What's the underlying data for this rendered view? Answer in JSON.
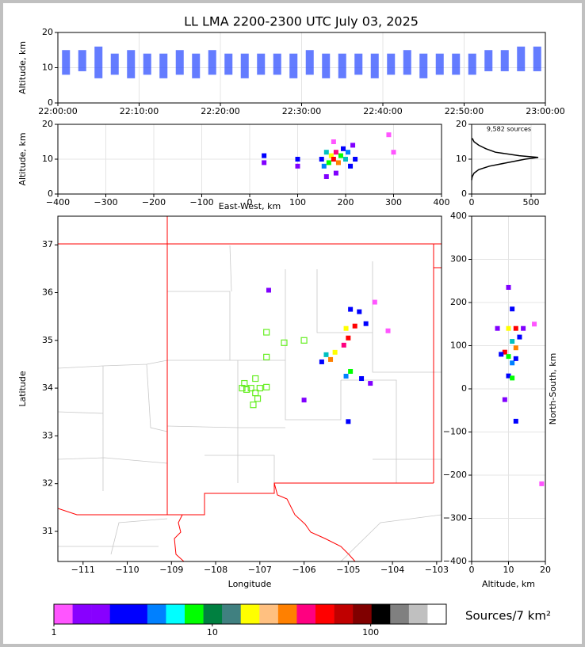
{
  "chart_data": [
    {
      "type": "range_bar",
      "title": "LL LMA 2200-2300 UTC July 03, 2025",
      "ylabel": "Altitude, km",
      "xlim": [
        0,
        60
      ],
      "xticks": [
        {
          "value": 0,
          "label": "22:00:00"
        },
        {
          "value": 10,
          "label": "22:10:00"
        },
        {
          "value": 20,
          "label": "22:20:00"
        },
        {
          "value": 30,
          "label": "22:30:00"
        },
        {
          "value": 40,
          "label": "22:40:00"
        },
        {
          "value": 50,
          "label": "22:50:00"
        },
        {
          "value": 60,
          "label": "23:00:00"
        }
      ],
      "ylim": [
        0,
        20
      ],
      "yticks": [
        0,
        10,
        20
      ],
      "grid": true,
      "color": "#3050ff",
      "x": [
        1,
        3,
        5,
        7,
        9,
        11,
        13,
        15,
        17,
        19,
        21,
        23,
        25,
        27,
        29,
        31,
        33,
        35,
        37,
        39,
        41,
        43,
        45,
        47,
        49,
        51,
        53,
        55,
        57,
        59
      ],
      "y_low": [
        8,
        9,
        7,
        8,
        7,
        8,
        7,
        8,
        7,
        8,
        8,
        7,
        8,
        8,
        7,
        8,
        7,
        7,
        8,
        7,
        8,
        8,
        7,
        8,
        8,
        8,
        9,
        9,
        9,
        9
      ],
      "y_high": [
        15,
        15,
        16,
        14,
        15,
        14,
        14,
        15,
        14,
        15,
        14,
        14,
        14,
        14,
        14,
        15,
        14,
        14,
        14,
        14,
        14,
        15,
        14,
        14,
        14,
        14,
        15,
        15,
        16,
        16
      ]
    },
    {
      "type": "scatter",
      "xlabel": "East-West, km",
      "ylabel": "Altitude, km",
      "xlim": [
        -400,
        400
      ],
      "xticks": [
        {
          "value": -400,
          "label": "−400"
        },
        {
          "value": -300,
          "label": "−300"
        },
        {
          "value": -200,
          "label": "−200"
        },
        {
          "value": -100,
          "label": "−100"
        },
        0,
        100,
        200,
        300,
        400
      ],
      "ylim": [
        0,
        20
      ],
      "yticks": [
        0,
        10,
        20
      ],
      "grid": true,
      "x": [
        30,
        30,
        100,
        100,
        150,
        155,
        160,
        165,
        170,
        175,
        180,
        185,
        190,
        195,
        200,
        205,
        210,
        215,
        220,
        175,
        180,
        290,
        300,
        160
      ],
      "y": [
        9,
        11,
        8,
        10,
        10,
        8,
        12,
        9,
        11,
        10,
        12,
        9,
        11,
        13,
        10,
        12,
        8,
        14,
        10,
        15,
        6,
        17,
        12,
        5
      ],
      "colors": [
        "#8000ff",
        "#0000ff",
        "#8000ff",
        "#0000ff",
        "#0000ff",
        "#0080ff",
        "#00c0c0",
        "#00ff00",
        "#ffff00",
        "#ff0000",
        "#ff0080",
        "#ff8000",
        "#00ff00",
        "#0000ff",
        "#00c0c0",
        "#0080ff",
        "#0000ff",
        "#8000ff",
        "#0000ff",
        "#ff55ff",
        "#8000ff",
        "#ff55ff",
        "#ff55ff",
        "#8000ff"
      ]
    },
    {
      "type": "line",
      "annotation": "9,582 sources",
      "xlim": [
        0,
        620
      ],
      "xticks": [
        0,
        500
      ],
      "ylim": [
        0,
        20
      ],
      "yticks": [
        0,
        10,
        20
      ],
      "grid": true,
      "color": "#000000",
      "x": [
        0,
        5,
        20,
        60,
        150,
        300,
        450,
        560,
        400,
        200,
        120,
        60,
        20,
        5
      ],
      "y": [
        4,
        5,
        6,
        7,
        8,
        9,
        10,
        10.5,
        11,
        12,
        13,
        14,
        15,
        16
      ]
    },
    {
      "type": "scatter",
      "xlabel": "Longitude",
      "ylabel": "Latitude",
      "xlim": [
        -111.57,
        -102.89
      ],
      "xticks": [
        {
          "value": -111,
          "label": "−111"
        },
        {
          "value": -110,
          "label": "−110"
        },
        {
          "value": -109,
          "label": "−109"
        },
        {
          "value": -108,
          "label": "−108"
        },
        {
          "value": -107,
          "label": "−107"
        },
        {
          "value": -106,
          "label": "−106"
        },
        {
          "value": -105,
          "label": "−105"
        },
        {
          "value": -104,
          "label": "−104"
        },
        {
          "value": -103,
          "label": "−103"
        }
      ],
      "ylim": [
        30.37,
        37.6
      ],
      "yticks": [
        31,
        32,
        33,
        34,
        35,
        36,
        37
      ],
      "grid": false,
      "x": [
        -106.8,
        -104.95,
        -104.75,
        -104.85,
        -105.05,
        -104.6,
        -105.0,
        -105.1,
        -105.3,
        -105.5,
        -105.6,
        -105.4,
        -104.95,
        -105.05,
        -104.7,
        -104.5,
        -105.0,
        -106.0,
        -104.1,
        -104.4
      ],
      "y": [
        36.05,
        35.65,
        35.6,
        35.3,
        35.25,
        35.35,
        35.05,
        34.9,
        34.75,
        34.7,
        34.55,
        34.6,
        34.35,
        34.25,
        34.2,
        34.1,
        33.3,
        33.75,
        35.2,
        35.8
      ],
      "colors": [
        "#8000ff",
        "#0000ff",
        "#0000ff",
        "#ff0000",
        "#ffff00",
        "#0000ff",
        "#ff0000",
        "#ff0080",
        "#ffff00",
        "#00c0c0",
        "#0000ff",
        "#ff8000",
        "#00ff00",
        "#0080ff",
        "#0000ff",
        "#8000ff",
        "#0000ff",
        "#8000ff",
        "#ff55ff",
        "#ff55ff"
      ],
      "stations": {
        "color": "#66ee22",
        "x": [
          -106.85,
          -106.45,
          -106.0,
          -106.85,
          -107.1,
          -107.35,
          -107.4,
          -107.2,
          -107.0,
          -106.85,
          -107.1,
          -107.05,
          -107.15,
          -107.3
        ],
        "y": [
          35.17,
          34.95,
          35.0,
          34.65,
          34.2,
          34.1,
          34.0,
          34.0,
          34.0,
          34.02,
          33.9,
          33.78,
          33.65,
          33.97
        ]
      }
    },
    {
      "type": "scatter",
      "xlabel": "Altitude, km",
      "ylabel": "North-South, km",
      "xlim": [
        0,
        20
      ],
      "xticks": [
        0,
        10,
        20
      ],
      "ylim": [
        -400,
        400
      ],
      "yticks": [
        {
          "value": -400,
          "label": "−400"
        },
        {
          "value": -300,
          "label": "−300"
        },
        {
          "value": -200,
          "label": "−200"
        },
        {
          "value": -100,
          "label": "−100"
        },
        0,
        100,
        200,
        300,
        400
      ],
      "grid": true,
      "x": [
        10,
        11,
        12,
        10,
        11,
        13,
        9,
        10,
        8,
        11,
        12,
        10,
        11,
        12,
        7,
        14,
        12,
        9,
        19,
        17
      ],
      "y": [
        235,
        185,
        140,
        140,
        110,
        120,
        85,
        75,
        80,
        60,
        95,
        30,
        25,
        70,
        140,
        140,
        -75,
        -25,
        -220,
        150
      ],
      "colors": [
        "#8000ff",
        "#0000ff",
        "#ff0000",
        "#ffff00",
        "#00c0c0",
        "#0000ff",
        "#ff0000",
        "#00ff00",
        "#0000ff",
        "#0080ff",
        "#ff8000",
        "#0000ff",
        "#00ff00",
        "#0000ff",
        "#8000ff",
        "#8000ff",
        "#0000ff",
        "#8000ff",
        "#ff55ff",
        "#ff55ff"
      ]
    },
    {
      "type": "colorbar",
      "label": "Sources/7 km²",
      "log": true,
      "xlim": [
        1,
        300
      ],
      "xticks": [
        1,
        10,
        100
      ],
      "colors": [
        "#ff55ff",
        "#8800ff",
        "#8800ff",
        "#0000ff",
        "#0000ff",
        "#0080ff",
        "#00ffff",
        "#00ff00",
        "#008040",
        "#408080",
        "#ffff00",
        "#ffc080",
        "#ff8000",
        "#ff0080",
        "#ff0000",
        "#c00000",
        "#800000",
        "#000000",
        "#808080",
        "#c0c0c0",
        "#ffffff"
      ]
    }
  ]
}
